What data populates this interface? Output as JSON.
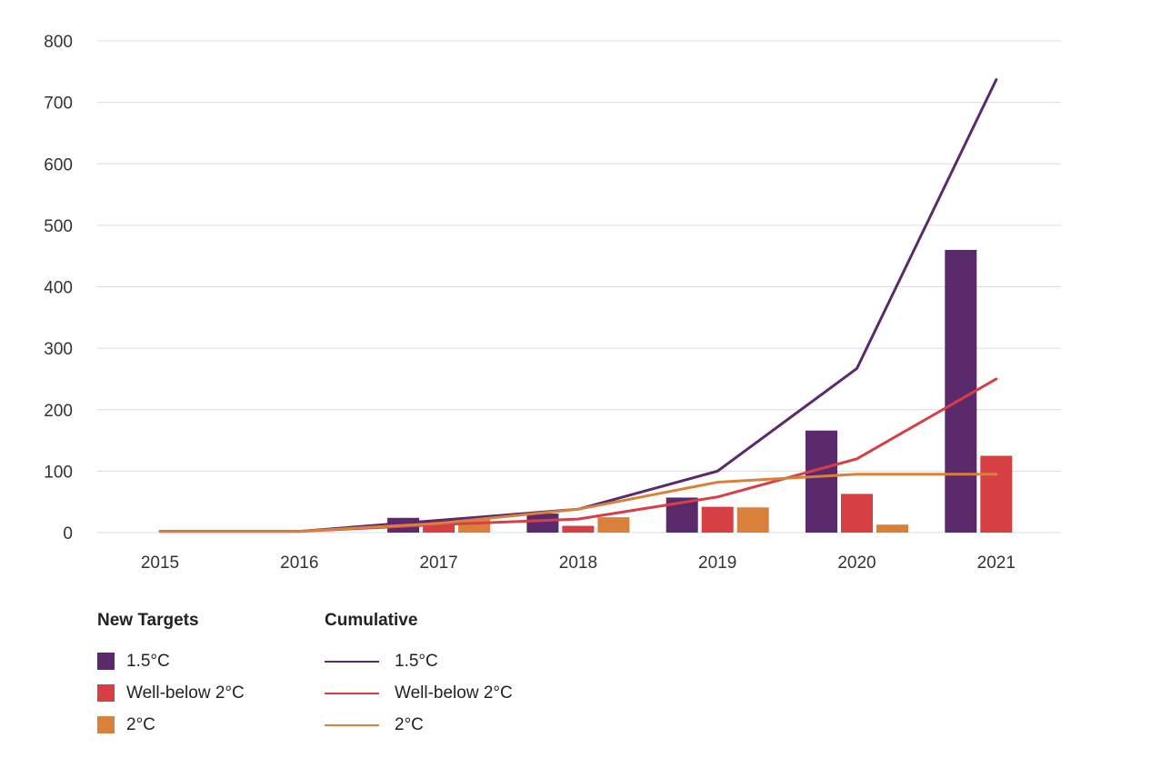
{
  "chart_data": {
    "type": "bar",
    "categories": [
      "2015",
      "2016",
      "2017",
      "2018",
      "2019",
      "2020",
      "2021"
    ],
    "ylim": [
      0,
      800
    ],
    "yticks": [
      0,
      100,
      200,
      300,
      400,
      500,
      600,
      700,
      800
    ],
    "grid": true,
    "legend_position": "bottom-left",
    "bar_series": [
      {
        "name": "1.5°C",
        "color": "#5a2a6c",
        "values": [
          0,
          0,
          24,
          31,
          57,
          166,
          460
        ]
      },
      {
        "name": "Well-below 2°C",
        "color": "#d64045",
        "values": [
          0,
          0,
          20,
          11,
          42,
          63,
          125
        ]
      },
      {
        "name": "2°C",
        "color": "#d9803b",
        "values": [
          0,
          0,
          22,
          25,
          41,
          13,
          0
        ]
      }
    ],
    "line_series": [
      {
        "name": "1.5°C",
        "color": "#5a2a6c",
        "values": [
          2,
          2,
          20,
          38,
          100,
          267,
          737
        ]
      },
      {
        "name": "Well-below 2°C",
        "color": "#d64045",
        "values": [
          2,
          2,
          13,
          22,
          58,
          120,
          250
        ]
      },
      {
        "name": "2°C",
        "color": "#d9803b",
        "values": [
          2,
          2,
          15,
          38,
          82,
          95,
          95
        ]
      }
    ]
  },
  "legend": {
    "new_targets_title": "New Targets",
    "cumulative_title": "Cumulative",
    "items": [
      "1.5°C",
      "Well-below 2°C",
      "2°C"
    ]
  }
}
